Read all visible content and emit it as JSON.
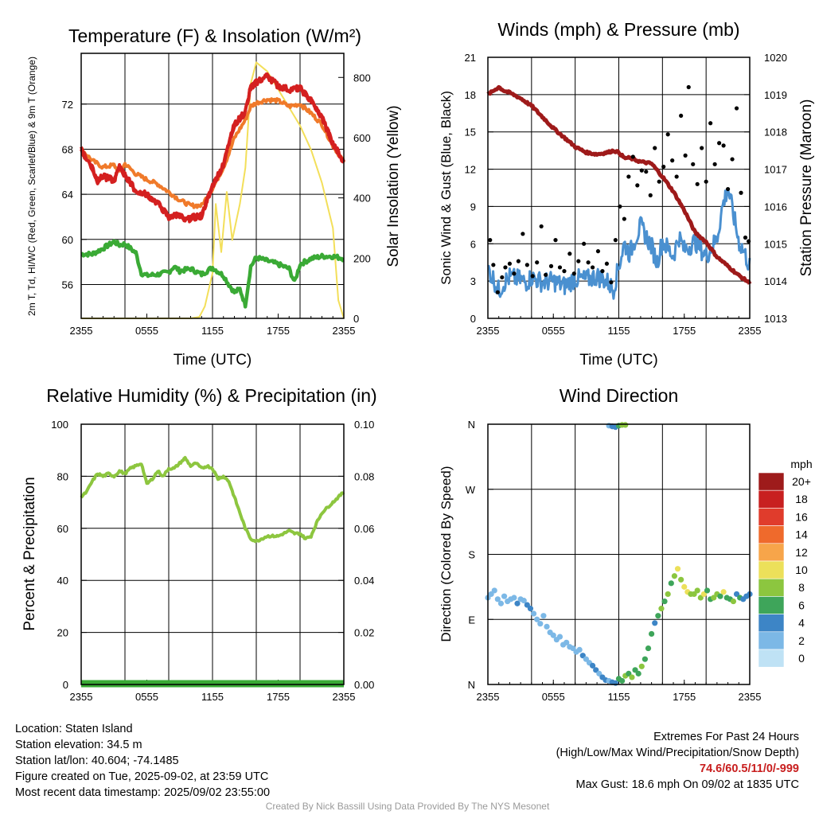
{
  "chart_data": [
    {
      "type": "line",
      "title": "Temperature (F) & Insolation (W/m²)",
      "xlabel": "Time (UTC)",
      "ylabel": "2m T, Td, HI/WC (Red, Green, Scarlet/Blue) & 9m T (Orange)",
      "ylabel_right": "Solar Insolation (Yellow)",
      "x_ticks": [
        "2355",
        "0555",
        "1155",
        "1755",
        "2355"
      ],
      "x_range_hours": [
        0,
        24
      ],
      "ylim": [
        53,
        76.5
      ],
      "y_ticks": [
        56,
        60,
        64,
        68,
        72
      ],
      "ylim_right": [
        0,
        880
      ],
      "y_ticks_right": [
        0,
        200,
        400,
        600,
        800
      ],
      "grid": true,
      "series": [
        {
          "name": "2m T",
          "axis": "left",
          "color": "#d42020",
          "x": [
            0,
            1,
            1.5,
            2,
            3,
            3.5,
            4,
            5,
            6,
            7,
            8,
            9,
            9.5,
            10,
            11,
            12,
            13,
            13.5,
            14,
            15,
            15.5,
            16,
            17,
            18,
            19,
            20,
            21,
            22,
            23,
            24
          ],
          "y": [
            68,
            66.3,
            65.2,
            65.6,
            65.2,
            66.4,
            65.7,
            64.3,
            64,
            63.2,
            62,
            62.2,
            61.6,
            61.9,
            62.1,
            64.8,
            66.6,
            68.5,
            70.2,
            71.3,
            73.5,
            73.9,
            74.5,
            73.6,
            73.3,
            73.4,
            72.3,
            70.8,
            68.5,
            66.9
          ]
        },
        {
          "name": "HI/WC",
          "axis": "left",
          "color": "#d42020",
          "x": [
            0,
            1,
            1.5,
            2,
            3,
            3.5,
            4,
            5,
            6,
            7,
            8,
            9,
            9.5,
            10,
            11,
            12,
            13,
            13.5,
            14,
            15,
            15.5,
            16,
            17,
            18,
            19,
            20,
            21,
            22,
            23,
            24
          ],
          "y": [
            68,
            66.3,
            65.2,
            65.6,
            65.2,
            66.4,
            65.7,
            64.3,
            64,
            63.2,
            62,
            62.2,
            61.6,
            61.9,
            62.1,
            64.8,
            66.6,
            68.5,
            70.2,
            71.3,
            73.5,
            73.9,
            74.5,
            73.6,
            73.3,
            73.4,
            72.3,
            70.8,
            68.5,
            66.9
          ]
        },
        {
          "name": "9m T",
          "axis": "left",
          "color": "#f07a2a",
          "x": [
            0,
            1,
            2,
            3,
            3.5,
            4,
            5,
            6,
            7,
            8,
            9,
            10,
            11,
            12,
            13,
            13.5,
            14,
            15,
            15.5,
            16,
            17,
            18,
            19,
            20,
            21,
            22,
            23,
            24
          ],
          "y": [
            68,
            67,
            66.4,
            66.6,
            65.9,
            66.7,
            65.8,
            65.3,
            64.9,
            64.2,
            63.5,
            63,
            63,
            64.5,
            66.4,
            67.6,
            69,
            70.6,
            71.8,
            72.1,
            72.4,
            72.3,
            71.8,
            72,
            71.2,
            70.2,
            68.3,
            66.9
          ]
        },
        {
          "name": "2m Td",
          "axis": "left",
          "color": "#3aaa35",
          "x": [
            0,
            1,
            2,
            3,
            3.5,
            4,
            5,
            5.5,
            6,
            7,
            8,
            8.5,
            9,
            10,
            11,
            11.5,
            12,
            13,
            13.5,
            14,
            14.5,
            15,
            15.5,
            16,
            17,
            18,
            19,
            19.5,
            20,
            21,
            22,
            23,
            24
          ],
          "y": [
            58.7,
            58.7,
            59.2,
            59.8,
            59.5,
            59.6,
            58.8,
            57,
            56.8,
            56.9,
            57.1,
            57.6,
            57.2,
            57.4,
            56.9,
            57.2,
            57.5,
            56.8,
            56,
            55.3,
            55.6,
            54.2,
            57.6,
            58.4,
            58.1,
            57.8,
            57.4,
            56.2,
            57.8,
            58.3,
            58.5,
            58.5,
            58.3
          ]
        },
        {
          "name": "Solar Insolation",
          "axis": "right",
          "color": "#f3df5a",
          "x": [
            0,
            5,
            10,
            10.8,
            11.3,
            12,
            12.3,
            12.8,
            13.3,
            13.8,
            14.5,
            15,
            15.5,
            16,
            17,
            18,
            19,
            20,
            21,
            22,
            23,
            23.5,
            24
          ],
          "y": [
            0,
            0,
            0,
            5,
            40,
            150,
            380,
            220,
            420,
            260,
            380,
            500,
            780,
            850,
            820,
            760,
            700,
            640,
            560,
            450,
            300,
            60,
            0
          ]
        }
      ]
    },
    {
      "type": "scatter",
      "title": "Winds (mph) & Pressure (mb)",
      "xlabel": "Time (UTC)",
      "ylabel": "Sonic Wind & Gust (Blue, Black)",
      "ylabel_right": "Station Pressure (Maroon)",
      "x_ticks": [
        "2355",
        "0555",
        "1155",
        "1755",
        "2355"
      ],
      "x_range_hours": [
        0,
        24
      ],
      "ylim": [
        0,
        21
      ],
      "y_ticks": [
        0,
        3,
        6,
        9,
        12,
        15,
        18,
        21
      ],
      "ylim_right": [
        1013,
        1020
      ],
      "y_ticks_right": [
        1013,
        1014,
        1015,
        1016,
        1017,
        1018,
        1019,
        1020
      ],
      "grid": true,
      "series": [
        {
          "name": "Sonic Wind",
          "kind": "line",
          "axis": "left",
          "color": "#4a90d0",
          "x": [
            0,
            0.5,
            1,
            1.5,
            2,
            3,
            3.5,
            4,
            5,
            6,
            7,
            8,
            9,
            10,
            11,
            11.5,
            12,
            12.5,
            13,
            13.5,
            14,
            15,
            15.5,
            16,
            17,
            17.5,
            18,
            19,
            20,
            21,
            21.5,
            22,
            23,
            23.5,
            24
          ],
          "y": [
            4,
            3.2,
            2.2,
            2.9,
            3.3,
            3.1,
            2.9,
            3.3,
            2.9,
            3.0,
            2.6,
            3.2,
            3.1,
            3.4,
            2.9,
            2.3,
            4.2,
            6,
            5.2,
            6.4,
            7.4,
            5.8,
            4.5,
            6.2,
            5.0,
            6.6,
            5.5,
            6.2,
            5.0,
            6.4,
            9,
            10.5,
            6.2,
            5.3,
            4.2
          ]
        },
        {
          "name": "Gust",
          "kind": "scatter",
          "axis": "left",
          "color": "#000000",
          "x": [
            0.2,
            0.5,
            0.9,
            1.3,
            1.6,
            2,
            2.4,
            2.8,
            3.2,
            3.6,
            4.1,
            4.5,
            4.9,
            5.3,
            5.8,
            6.2,
            6.6,
            7,
            7.5,
            7.9,
            8.3,
            8.8,
            9.2,
            9.6,
            10.1,
            10.5,
            10.9,
            11.3,
            11.7,
            12.1,
            12.5,
            12.9,
            13.3,
            13.7,
            14.1,
            14.5,
            14.9,
            15.3,
            15.7,
            16.1,
            16.5,
            16.9,
            17.3,
            17.7,
            18.1,
            18.4,
            18.8,
            19.2,
            19.6,
            20,
            20.4,
            20.8,
            21.2,
            21.6,
            22,
            22.4,
            22.8,
            23.2,
            23.6,
            23.9
          ],
          "y": [
            6.3,
            4.3,
            2.1,
            3.3,
            4.1,
            4.4,
            3.6,
            4.6,
            6.8,
            4.3,
            3.4,
            4.5,
            7.4,
            3.5,
            4.2,
            6.3,
            4.1,
            3.8,
            5.2,
            3.6,
            4.6,
            6.0,
            4.5,
            4.1,
            5.4,
            3.8,
            4.4,
            2.9,
            6.3,
            9.0,
            8.0,
            11.4,
            13.0,
            10.7,
            11.9,
            11.8,
            9.9,
            13.7,
            11.0,
            12.2,
            14.8,
            12.7,
            11.4,
            16.3,
            13.1,
            18.6,
            12.4,
            10.8,
            13.7,
            11.0,
            15.7,
            12.4,
            14.1,
            13.9,
            10.4,
            12.8,
            16.9,
            10.1,
            6.5,
            6.2
          ]
        },
        {
          "name": "Station Pressure",
          "kind": "line",
          "axis": "right",
          "color": "#9e1a1a",
          "x": [
            0,
            0.5,
            1,
            1.5,
            2,
            3,
            4,
            5,
            6,
            7,
            8,
            9,
            10,
            11,
            11.5,
            12,
            12.5,
            13,
            14,
            15,
            16,
            17,
            18,
            19,
            20,
            21,
            22,
            23,
            24
          ],
          "y": [
            1019,
            1019.1,
            1019.2,
            1019.1,
            1019.05,
            1018.9,
            1018.7,
            1018.4,
            1018.1,
            1017.85,
            1017.6,
            1017.45,
            1017.4,
            1017.45,
            1017.5,
            1017.45,
            1017.3,
            1017.3,
            1017.2,
            1017.15,
            1016.8,
            1016.4,
            1015.9,
            1015.3,
            1015.05,
            1014.65,
            1014.4,
            1014.15,
            1013.95
          ]
        }
      ]
    },
    {
      "type": "line",
      "title": "Relative Humidity (%) & Precipitation (in)",
      "xlabel": "",
      "ylabel": "Percent & Precipitation",
      "x_ticks": [
        "2355",
        "0555",
        "1155",
        "1755",
        "2355"
      ],
      "x_range_hours": [
        0,
        24
      ],
      "ylim": [
        0,
        100
      ],
      "y_ticks": [
        0,
        20,
        40,
        60,
        80,
        100
      ],
      "ylim_right": [
        0,
        0.1
      ],
      "y_ticks_right": [
        "0.00",
        "0.02",
        "0.04",
        "0.06",
        "0.08",
        "0.10"
      ],
      "grid": true,
      "series": [
        {
          "name": "Relative Humidity",
          "axis": "left",
          "color": "#8dc63f",
          "x": [
            0,
            0.5,
            1,
            1.5,
            2,
            2.5,
            3,
            3.5,
            4,
            4.5,
            5,
            5.5,
            6,
            6.5,
            7,
            7.5,
            8,
            8.5,
            9,
            9.5,
            10,
            10.5,
            11,
            11.5,
            12,
            12.5,
            13,
            13.5,
            14,
            14.5,
            15,
            15.5,
            16,
            17,
            18,
            18.5,
            19,
            19.5,
            20,
            20.5,
            21,
            21.5,
            22,
            23,
            24
          ],
          "y": [
            72,
            74,
            78,
            81,
            80,
            81,
            80,
            82,
            81,
            83,
            84,
            85,
            77,
            79,
            82,
            80,
            83,
            83,
            85,
            87,
            84,
            85,
            83,
            84,
            83,
            79,
            80,
            78,
            72,
            66,
            60,
            56,
            55,
            57,
            57,
            58,
            59,
            58,
            58,
            56,
            57,
            62,
            66,
            70,
            74
          ]
        },
        {
          "name": "Precipitation",
          "axis": "right",
          "color": "#3aaa35",
          "x": [
            0,
            24
          ],
          "y": [
            0,
            0
          ]
        }
      ]
    },
    {
      "type": "scatter",
      "title": "Wind Direction",
      "xlabel": "",
      "ylabel": "Direction (Colored By Speed)",
      "x_ticks": [
        "2355",
        "0555",
        "1155",
        "1755",
        "2355"
      ],
      "x_range_hours": [
        0,
        24
      ],
      "y_ticks": [
        "N",
        "E",
        "S",
        "W",
        "N"
      ],
      "ylim_degrees": [
        0,
        360
      ],
      "grid": true,
      "colorbar": {
        "unit": "mph",
        "labels": [
          "20+",
          "18",
          "16",
          "14",
          "12",
          "10",
          "8",
          "6",
          "4",
          "2",
          "0"
        ],
        "colors": [
          "#9e1b1b",
          "#c82020",
          "#e03c2c",
          "#ef6a2c",
          "#f7a54a",
          "#ece05a",
          "#8cc63f",
          "#3ea55a",
          "#3d85c6",
          "#7cb8e6",
          "#bfe2f5"
        ]
      },
      "points_hour": [
        0,
        0.3,
        0.6,
        0.9,
        1.2,
        1.5,
        1.8,
        2.1,
        2.4,
        2.7,
        3.0,
        3.3,
        3.6,
        3.9,
        4.2,
        4.5,
        4.8,
        5.1,
        5.4,
        5.7,
        6.0,
        6.3,
        6.6,
        6.9,
        7.2,
        7.5,
        7.8,
        8.1,
        8.4,
        8.7,
        9.0,
        9.3,
        9.6,
        9.9,
        10.2,
        10.5,
        10.8,
        11.1,
        11.4,
        11.7,
        12.0,
        12.3,
        12.6,
        12.9,
        13.2,
        13.5,
        13.8,
        14.1,
        14.4,
        14.7,
        15.0,
        15.3,
        15.6,
        15.9,
        16.2,
        16.5,
        16.8,
        17.1,
        17.4,
        17.7,
        18.0,
        18.3,
        18.6,
        18.9,
        19.2,
        19.5,
        19.8,
        20.1,
        20.4,
        20.7,
        21.0,
        21.3,
        21.6,
        21.9,
        22.2,
        22.5,
        22.8,
        23.1,
        23.4,
        23.7,
        24.0,
        11.1,
        11.4,
        11.7,
        12.0,
        12.3,
        12.6
      ],
      "points_deg": [
        120,
        125,
        130,
        118,
        112,
        122,
        115,
        118,
        120,
        112,
        118,
        116,
        110,
        105,
        98,
        90,
        84,
        95,
        80,
        72,
        68,
        62,
        66,
        55,
        58,
        52,
        50,
        45,
        48,
        40,
        35,
        30,
        26,
        20,
        15,
        10,
        6,
        5,
        3,
        2,
        8,
        5,
        12,
        15,
        10,
        20,
        15,
        25,
        35,
        50,
        70,
        85,
        95,
        105,
        115,
        125,
        140,
        150,
        160,
        145,
        135,
        128,
        125,
        125,
        130,
        120,
        125,
        130,
        118,
        120,
        125,
        122,
        128,
        120,
        118,
        115,
        125,
        120,
        118,
        122,
        125,
        358,
        357,
        356,
        358,
        359,
        360
      ],
      "points_speed": [
        1,
        1,
        1,
        2,
        2,
        2,
        1,
        2,
        2,
        3,
        2,
        2,
        3,
        3,
        2,
        2,
        2,
        2,
        2,
        2,
        2,
        2,
        2,
        2,
        2,
        2,
        2,
        2,
        2,
        3,
        2,
        2,
        3,
        3,
        2,
        3,
        3,
        2,
        3,
        4,
        5,
        6,
        7,
        6,
        7,
        5,
        6,
        7,
        6,
        5,
        5,
        4,
        6,
        7,
        5,
        8,
        6,
        7,
        9,
        8,
        10,
        9,
        8,
        7,
        8,
        8,
        9,
        6,
        5,
        8,
        7,
        6,
        10,
        6,
        5,
        7,
        4,
        5,
        4,
        3,
        4,
        2,
        3,
        4,
        6,
        7,
        7
      ]
    }
  ],
  "info_left": [
    "Location: Staten Island",
    "Station elevation: 34.5 m",
    "Station lat/lon: 40.604; -74.1485",
    "Figure created on Tue, 2025-09-02, at 23:59 UTC",
    "Most recent data timestamp: 2025/09/02 23:55:00"
  ],
  "extremes": {
    "title": "Extremes For Past 24 Hours",
    "subtitle": "(High/Low/Max Wind/Precipitation/Snow Depth)",
    "values": "74.6/60.5/11/0/-999",
    "max_gust": "Max Gust: 18.6 mph On 09/02 at 1835 UTC"
  },
  "credit": "Created By Nick Bassill Using Data Provided By The NYS Mesonet"
}
